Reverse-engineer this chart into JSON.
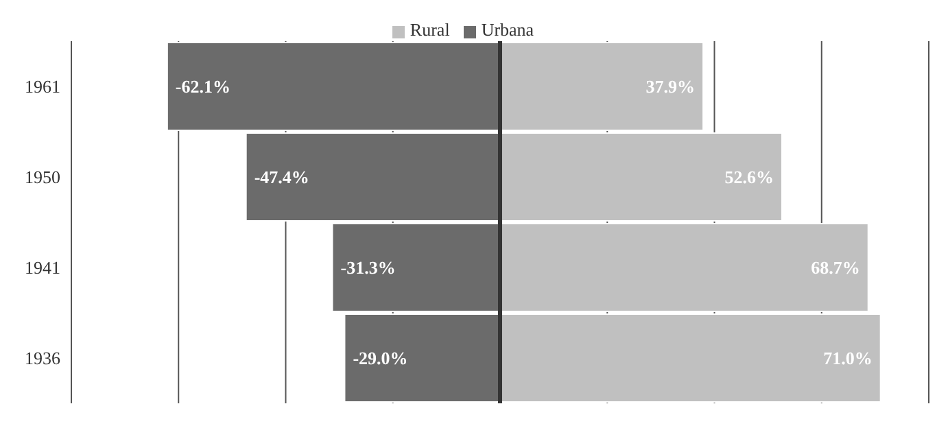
{
  "chart_data": {
    "type": "bar",
    "orientation": "horizontal",
    "stacked": true,
    "categories": [
      "1961",
      "1950",
      "1941",
      "1936"
    ],
    "series": [
      {
        "name": "Rural",
        "color": "#c0c0c0",
        "values": [
          37.9,
          52.6,
          68.7,
          71.0
        ],
        "value_labels": [
          "37.9%",
          "52.6%",
          "68.7%",
          "71.0%"
        ]
      },
      {
        "name": "Urbana",
        "color": "#6b6b6b",
        "values": [
          -62.1,
          -47.4,
          -31.3,
          -29.0
        ],
        "value_labels": [
          "-62.1%",
          "-47.4%",
          "-31.3%",
          "-29.0%"
        ]
      }
    ],
    "xlim": [
      -80,
      80
    ],
    "xticks": [
      {
        "value": -80,
        "label": null
      },
      {
        "value": -60,
        "label": null
      },
      {
        "value": -40,
        "label": null
      },
      {
        "value": -20,
        "label": null
      },
      {
        "value": 0,
        "label": null
      },
      {
        "value": 20,
        "label": null
      },
      {
        "value": 40,
        "label": null
      },
      {
        "value": 60,
        "label": null
      },
      {
        "value": 80,
        "label": null
      }
    ],
    "tick_labels": "y",
    "grid": "x",
    "legend": "top",
    "ref_lines": [
      {
        "axis": "x",
        "value": 0,
        "color": "#333333"
      }
    ]
  }
}
